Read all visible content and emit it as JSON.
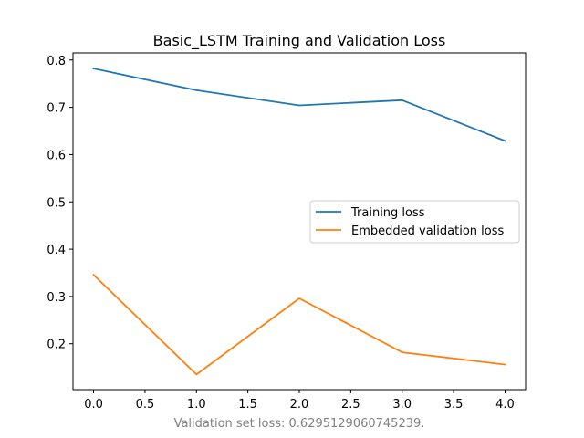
{
  "chart_data": {
    "type": "line",
    "title": "Basic_LSTM Training and Validation Loss",
    "xlabel": "",
    "ylabel": "",
    "x": [
      0,
      1,
      2,
      3,
      4
    ],
    "series": [
      {
        "name": "Training loss",
        "color": "#1f77b4",
        "values": [
          0.782,
          0.736,
          0.704,
          0.715,
          0.629
        ]
      },
      {
        "name": "Embedded validation loss",
        "color": "#ff7f0e",
        "values": [
          0.346,
          0.135,
          0.296,
          0.182,
          0.156
        ]
      }
    ],
    "xlim": [
      -0.2,
      4.2
    ],
    "ylim": [
      0.103,
      0.815
    ],
    "xticks": [
      0.0,
      0.5,
      1.0,
      1.5,
      2.0,
      2.5,
      3.0,
      3.5,
      4.0
    ],
    "xtick_labels": [
      "0.0",
      "0.5",
      "1.0",
      "1.5",
      "2.0",
      "2.5",
      "3.0",
      "3.5",
      "4.0"
    ],
    "yticks": [
      0.2,
      0.3,
      0.4,
      0.5,
      0.6,
      0.7,
      0.8
    ],
    "ytick_labels": [
      "0.2",
      "0.3",
      "0.4",
      "0.5",
      "0.6",
      "0.7",
      "0.8"
    ],
    "grid": false,
    "legend_position": "center-right"
  },
  "caption": "Validation set loss: 0.6295129060745239."
}
